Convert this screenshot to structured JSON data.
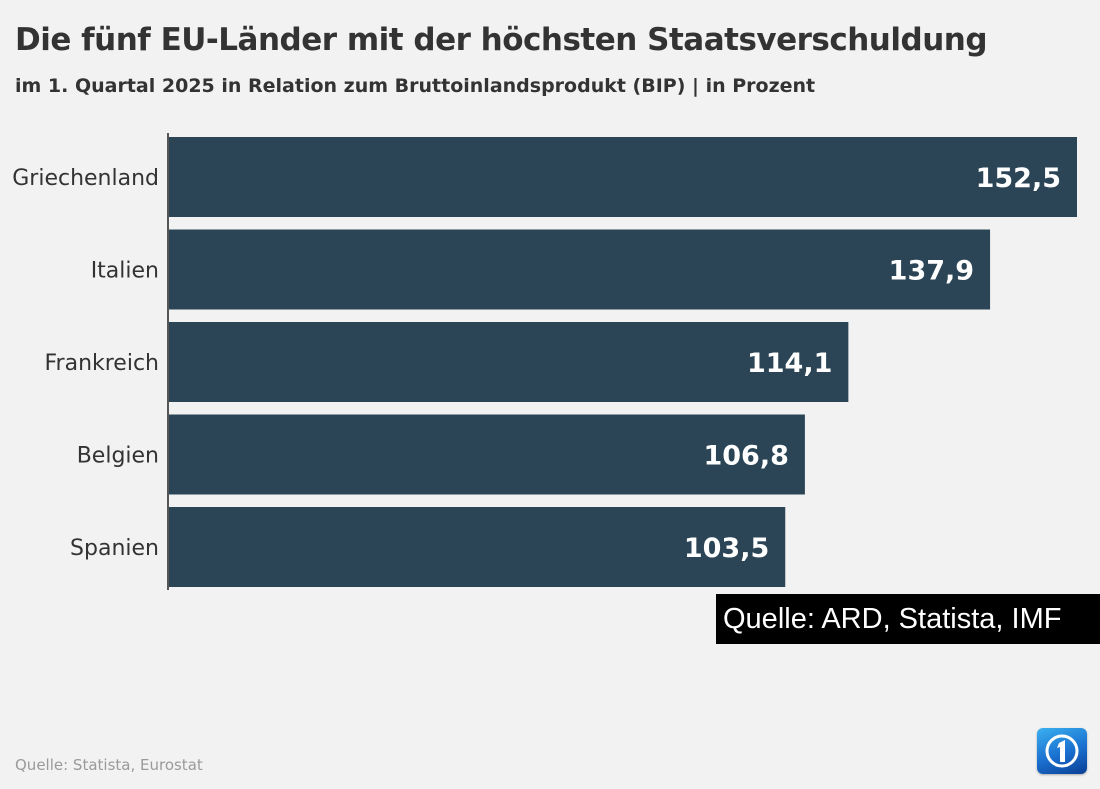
{
  "header": {
    "title": "Die fünf EU-Länder mit der höchsten Staatsverschuldung",
    "subtitle": "im 1. Quartal 2025 in Relation zum Bruttoinlandsprodukt (BIP) | in Prozent"
  },
  "overlay": {
    "source_label": "Quelle: ARD, Statista, IMF"
  },
  "footer": {
    "source": "Quelle: Statista, Eurostat"
  },
  "logo": {
    "icon": "tagesschau-1-logo-icon"
  },
  "colors": {
    "bar": "#2b4556",
    "background": "#f2f2f2",
    "text": "#333333"
  },
  "chart_data": {
    "type": "bar",
    "orientation": "horizontal",
    "title": "Die fünf EU-Länder mit der höchsten Staatsverschuldung",
    "subtitle": "im 1. Quartal 2025 in Relation zum Bruttoinlandsprodukt (BIP) | in Prozent",
    "categories": [
      "Griechenland",
      "Italien",
      "Frankreich",
      "Belgien",
      "Spanien"
    ],
    "values": [
      152.5,
      137.9,
      114.1,
      106.8,
      103.5
    ],
    "value_labels": [
      "152,5",
      "137,9",
      "114,1",
      "106,8",
      "103,5"
    ],
    "xlim": [
      0,
      152.5
    ],
    "grid": false,
    "legend": "none"
  }
}
